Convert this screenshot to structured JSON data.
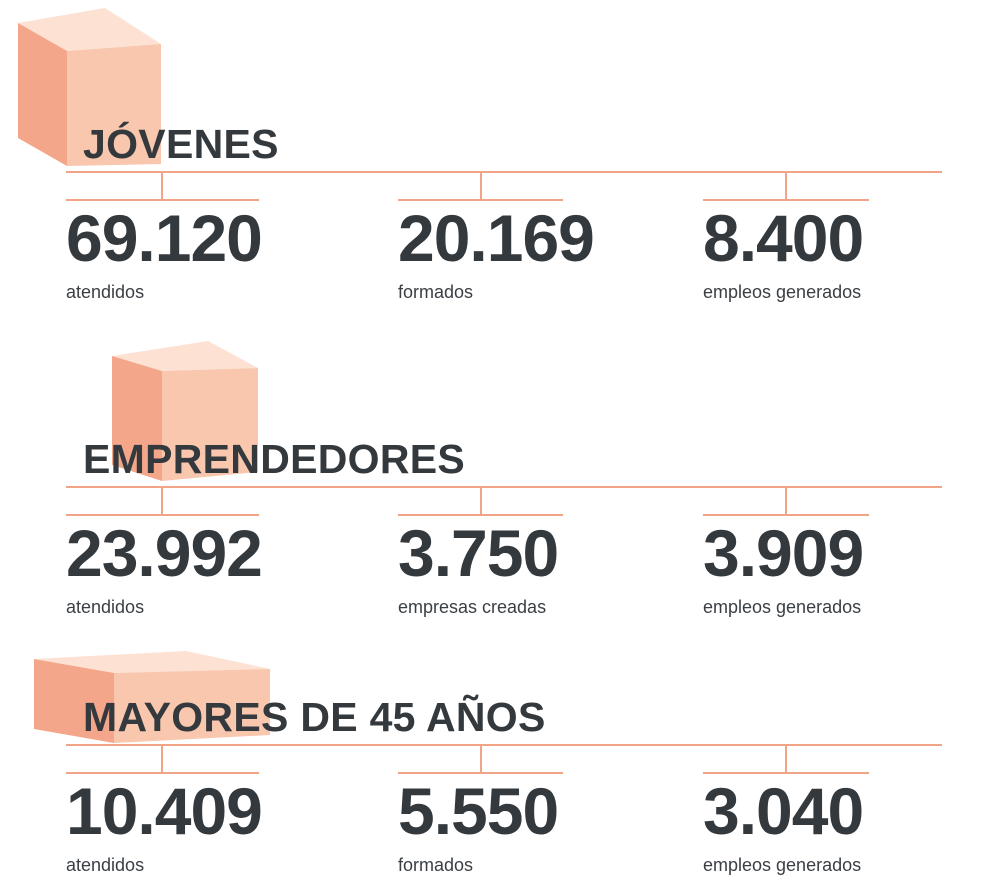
{
  "colors": {
    "accent_line": "#f1a486",
    "cube_light": "#fde1d3",
    "cube_mid": "#f9c6ae",
    "cube_dark": "#f3a68a",
    "text": "#34393e"
  },
  "sections": [
    {
      "title": "JÓVENES",
      "stats": [
        {
          "value": "69.120",
          "label": "atendidos"
        },
        {
          "value": "20.169",
          "label": "formados"
        },
        {
          "value": "8.400",
          "label": "empleos generados"
        }
      ]
    },
    {
      "title": "EMPRENDEDORES",
      "stats": [
        {
          "value": "23.992",
          "label": "atendidos"
        },
        {
          "value": "3.750",
          "label": "empresas creadas"
        },
        {
          "value": "3.909",
          "label": "empleos generados"
        }
      ]
    },
    {
      "title": "MAYORES DE 45 AÑOS",
      "stats": [
        {
          "value": "10.409",
          "label": "atendidos"
        },
        {
          "value": "5.550",
          "label": "formados"
        },
        {
          "value": "3.040",
          "label": "empleos generados"
        }
      ]
    }
  ]
}
